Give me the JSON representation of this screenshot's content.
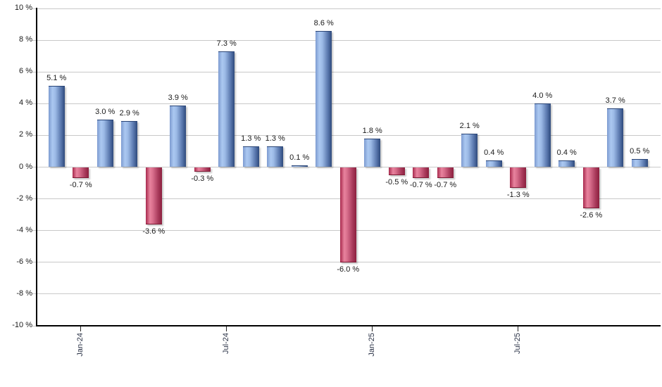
{
  "chart_data": {
    "type": "bar",
    "title": "",
    "xlabel": "",
    "ylabel": "",
    "ylim": [
      -10,
      10
    ],
    "grid": "horizontal",
    "legend": "none",
    "values": [
      5.1,
      -0.7,
      3.0,
      2.9,
      -3.6,
      3.9,
      -0.3,
      7.3,
      1.3,
      1.3,
      0.1,
      8.6,
      -6.0,
      1.8,
      -0.5,
      -0.7,
      -0.7,
      2.1,
      0.4,
      -1.3,
      4.0,
      0.4,
      -2.6,
      3.7,
      0.5
    ],
    "value_labels": [
      "5.1 %",
      "-0.7 %",
      "3.0 %",
      "2.9 %",
      "-3.6 %",
      "3.9 %",
      "-0.3 %",
      "7.3 %",
      "1.3 %",
      "1.3 %",
      "0.1 %",
      "8.6 %",
      "-6.0 %",
      "1.8 %",
      "-0.5 %",
      "-0.7 %",
      "-0.7 %",
      "2.1 %",
      "0.4 %",
      "-1.3 %",
      "4.0 %",
      "0.4 %",
      "-2.6 %",
      "3.7 %",
      "0.5 %"
    ],
    "x_tick_labels": [
      {
        "bar_index": 1,
        "label": "Jan-24"
      },
      {
        "bar_index": 7,
        "label": "Jul-24"
      },
      {
        "bar_index": 13,
        "label": "Jan-25"
      },
      {
        "bar_index": 19,
        "label": "Jul-25"
      }
    ],
    "y_ticks": [
      {
        "value": 10,
        "label": "10 %"
      },
      {
        "value": 8,
        "label": "8 %"
      },
      {
        "value": 6,
        "label": "6 %"
      },
      {
        "value": 4,
        "label": "4 %"
      },
      {
        "value": 2,
        "label": "2 %"
      },
      {
        "value": 0,
        "label": "0 %"
      },
      {
        "value": -2,
        "label": "-2 %"
      },
      {
        "value": -4,
        "label": "-4 %"
      },
      {
        "value": -6,
        "label": "-6 %"
      },
      {
        "value": -8,
        "label": "-8 %"
      },
      {
        "value": -10,
        "label": "-10 %"
      }
    ],
    "colors": {
      "positive_gradient": [
        {
          "color": "#7d9bd0",
          "stop": "0%"
        },
        {
          "color": "#abc8f1",
          "stop": "24%"
        },
        {
          "color": "#9cbae6",
          "stop": "42%"
        },
        {
          "color": "#5a78ae",
          "stop": "76%"
        },
        {
          "color": "#2e4a7c",
          "stop": "100%"
        }
      ],
      "negative_gradient": [
        {
          "color": "#a82a4d",
          "stop": "0%"
        },
        {
          "color": "#e8839e",
          "stop": "26%"
        },
        {
          "color": "#d66c8a",
          "stop": "45%"
        },
        {
          "color": "#a93b5c",
          "stop": "76%"
        },
        {
          "color": "#8c1f3e",
          "stop": "100%"
        }
      ],
      "positive_cap": "#2a4576",
      "negative_cap": "#7d1a34",
      "gridline": "#c9c9c9",
      "axis": "#000000",
      "label_text": "#1a1a1a"
    }
  }
}
